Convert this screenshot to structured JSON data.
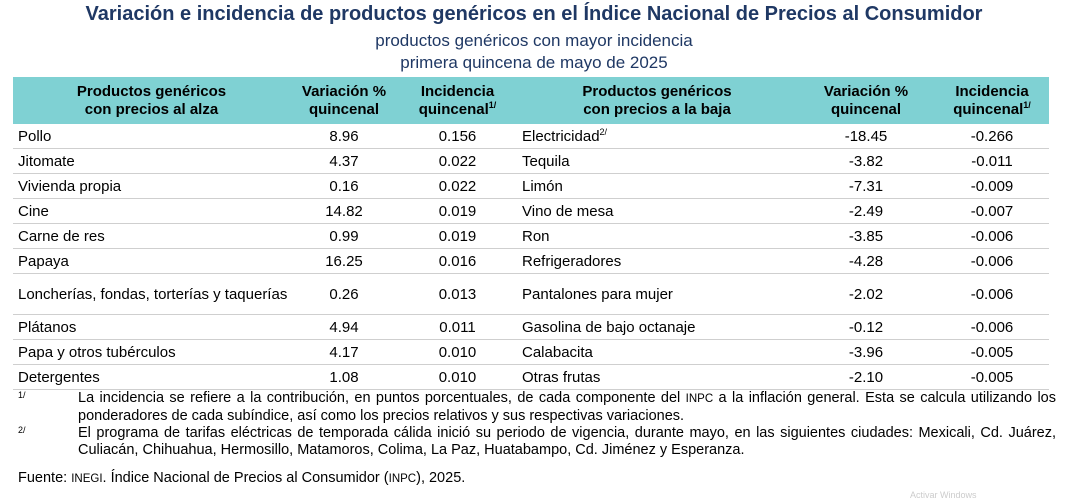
{
  "title": "Variación e incidencia de productos genéricos en el Índice Nacional de Precios al Consumidor",
  "subtitle1": "productos genéricos con mayor incidencia",
  "subtitle2": "primera quincena de mayo de 2025",
  "headers": {
    "prod_up_line1": "Productos genéricos",
    "prod_up_line2": "con precios al alza",
    "var_line1": "Variación %",
    "var_line2": "quincenal",
    "inc_line1": "Incidencia",
    "inc_line2": "quincenal",
    "inc_sup": "1/",
    "prod_down_line1": "Productos genéricos",
    "prod_down_line2": "con precios a la baja",
    "var2_line1": "Variación %",
    "var2_line2": "quincenal",
    "inc2_line1": "Incidencia",
    "inc2_line2": "quincenal",
    "inc2_sup": "1/"
  },
  "rows": [
    {
      "up_product": "Pollo",
      "up_var": "8.96",
      "up_inc": "0.156",
      "down_product": "Electricidad",
      "down_sup": "2/",
      "down_var": "-18.45",
      "down_inc": "-0.266"
    },
    {
      "up_product": "Jitomate",
      "up_var": "4.37",
      "up_inc": "0.022",
      "down_product": "Tequila",
      "down_var": "-3.82",
      "down_inc": "-0.011"
    },
    {
      "up_product": "Vivienda propia",
      "up_var": "0.16",
      "up_inc": "0.022",
      "down_product": "Limón",
      "down_var": "-7.31",
      "down_inc": "-0.009"
    },
    {
      "up_product": "Cine",
      "up_var": "14.82",
      "up_inc": "0.019",
      "down_product": "Vino de mesa",
      "down_var": "-2.49",
      "down_inc": "-0.007"
    },
    {
      "up_product": "Carne de res",
      "up_var": "0.99",
      "up_inc": "0.019",
      "down_product": "Ron",
      "down_var": "-3.85",
      "down_inc": "-0.006"
    },
    {
      "up_product": "Papaya",
      "up_var": "16.25",
      "up_inc": "0.016",
      "down_product": "Refrigeradores",
      "down_var": "-4.28",
      "down_inc": "-0.006"
    },
    {
      "up_product": "Loncherías, fondas, torterías y taquerías",
      "up_var": "0.26",
      "up_inc": "0.013",
      "down_product": "Pantalones para mujer",
      "down_var": "-2.02",
      "down_inc": "-0.006"
    },
    {
      "up_product": "Plátanos",
      "up_var": "4.94",
      "up_inc": "0.011",
      "down_product": "Gasolina de bajo octanaje",
      "down_var": "-0.12",
      "down_inc": "-0.006"
    },
    {
      "up_product": "Papa y otros tubérculos",
      "up_var": "4.17",
      "up_inc": "0.010",
      "down_product": "Calabacita",
      "down_var": "-3.96",
      "down_inc": "-0.005"
    },
    {
      "up_product": "Detergentes",
      "up_var": "1.08",
      "up_inc": "0.010",
      "down_product": "Otras frutas",
      "down_var": "-2.10",
      "down_inc": "-0.005"
    }
  ],
  "notes": {
    "note1_mark": "1/",
    "note1_text_a": "La incidencia se refiere a la contribución, en puntos porcentuales, de cada componente del ",
    "note1_abbrev": "INPC",
    "note1_text_b": " a la inflación general. Esta se calcula utilizando los ponderadores de cada subíndice, así como los precios relativos y sus respectivas variaciones.",
    "note2_mark": "2/",
    "note2_text": "El programa de tarifas eléctricas de temporada cálida inició su periodo de vigencia, durante mayo, en las siguientes ciudades: Mexicali, Cd. Juárez, Culiacán, Chihuahua, Hermosillo, Matamoros, Colima, La Paz, Huatabampo, Cd. Jiménez y Esperanza."
  },
  "source": {
    "label": "Fuente: ",
    "org": "INEGI",
    "text_a": ". Índice Nacional de Precios al Consumidor (",
    "abbrev": "INPC",
    "text_b": "), 2025."
  },
  "watermark": "Activar Windows",
  "colors": {
    "title": "#1f3864",
    "header_bg": "#7fd1d3"
  }
}
